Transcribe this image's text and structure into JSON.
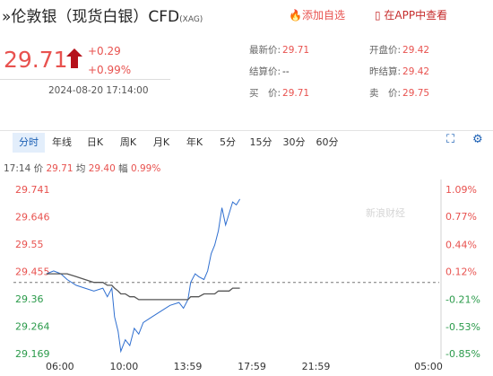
{
  "header": {
    "title": "伦敦银（现货白银）CFD",
    "code": "(XAG)",
    "add_watchlist": "添加自选",
    "open_app": "在APP中查看"
  },
  "quote": {
    "price": "29.71",
    "change": "+0.29",
    "change_pct": "+0.99%",
    "datetime": "2024-08-20 17:14:00"
  },
  "stats": [
    {
      "label": "最新价:",
      "value": "29.71"
    },
    {
      "label": "开盘价:",
      "value": "29.42"
    },
    {
      "label": "结算价:",
      "value": "--"
    },
    {
      "label": "昨结算:",
      "value": "29.42"
    },
    {
      "label": "买　价:",
      "value": "29.71"
    },
    {
      "label": "卖　价:",
      "value": "29.75"
    }
  ],
  "tabs": [
    "分时",
    "年线",
    "日K",
    "周K",
    "月K",
    "年K",
    "5分",
    "15分",
    "30分",
    "60分"
  ],
  "info": {
    "time": "17:14",
    "price_label": "价",
    "price": "29.71",
    "avg_label": "均",
    "avg": "29.40",
    "amp_label": "幅",
    "amp": "0.99%"
  },
  "chart_data": {
    "type": "line",
    "watermark": "新浪财经",
    "x": [
      -0.84,
      -0.39,
      0.06,
      0.45,
      1.01,
      1.56,
      2.12,
      2.68,
      2.96,
      3.24,
      3.41,
      3.63,
      3.8,
      4.08,
      4.36,
      4.64,
      4.92,
      5.2,
      5.75,
      6.31,
      6.87,
      7.43,
      7.71,
      7.99,
      8.16,
      8.44,
      8.66,
      8.99,
      9.22,
      9.44,
      9.66,
      9.89,
      10.11,
      10.34,
      10.56,
      10.78,
      11.01,
      11.23
    ],
    "series": [
      {
        "color": "#2f6fd0",
        "values": [
          29.45,
          29.46,
          29.45,
          29.43,
          29.41,
          29.4,
          29.39,
          29.4,
          29.37,
          29.4,
          29.3,
          29.25,
          29.18,
          29.22,
          29.2,
          29.26,
          29.24,
          29.28,
          29.3,
          29.32,
          29.34,
          29.35,
          29.33,
          29.36,
          29.42,
          29.45,
          29.44,
          29.43,
          29.46,
          29.52,
          29.55,
          29.6,
          29.68,
          29.62,
          29.66,
          29.7,
          29.69,
          29.71
        ]
      },
      {
        "color": "#555555",
        "values": [
          29.45,
          29.45,
          29.45,
          29.45,
          29.44,
          29.43,
          29.42,
          29.42,
          29.41,
          29.41,
          29.4,
          29.39,
          29.38,
          29.38,
          29.37,
          29.37,
          29.36,
          29.36,
          29.36,
          29.36,
          29.36,
          29.36,
          29.36,
          29.36,
          29.37,
          29.37,
          29.37,
          29.38,
          29.38,
          29.38,
          29.38,
          29.39,
          29.39,
          29.39,
          29.39,
          29.4,
          29.4,
          29.4
        ]
      }
    ],
    "reference": 29.42,
    "xlim": [
      -2.9,
      23.67
    ],
    "xticks": [
      {
        "value": 0,
        "label": "06:00"
      },
      {
        "value": 4,
        "label": "10:00"
      },
      {
        "value": 7.98,
        "label": "13:59"
      },
      {
        "value": 11.98,
        "label": "17:59"
      },
      {
        "value": 15.98,
        "label": "21:59"
      },
      {
        "value": 23,
        "label": "05:00"
      }
    ],
    "ylim": [
      29.169,
      29.741
    ],
    "yticks": [
      29.169,
      29.264,
      29.36,
      {
        "value": 29.455,
        "label": "29.455"
      },
      29.55,
      29.646,
      29.741
    ],
    "y2lim": [
      -0.85,
      1.09
    ],
    "y2ticks": [
      {
        "value": -0.85,
        "label": "-0.85%"
      },
      {
        "value": -0.53,
        "label": "-0.53%"
      },
      {
        "value": -0.21,
        "label": "-0.21%"
      },
      {
        "value": 0.12,
        "label": "0.12%"
      },
      {
        "value": 0.44,
        "label": "0.44%"
      },
      {
        "value": 0.77,
        "label": "0.77%"
      },
      {
        "value": 1.09,
        "label": "1.09%"
      }
    ],
    "up_color": "#e8524f",
    "down_color": "#2a9a4a"
  }
}
